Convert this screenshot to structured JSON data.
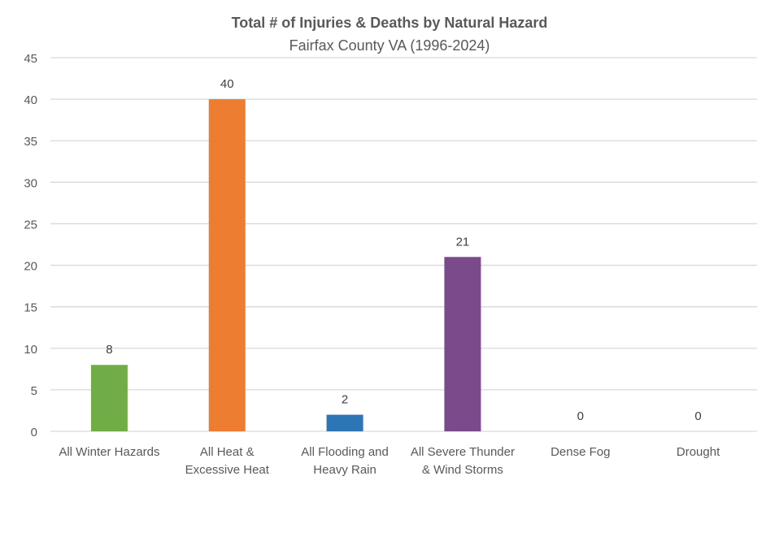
{
  "chart_data": {
    "type": "bar",
    "title": "Total # of Injuries & Deaths by Natural Hazard",
    "subtitle": "Fairfax County VA (1996-2024)",
    "xlabel": "",
    "ylabel": "",
    "ylim": [
      0,
      45
    ],
    "yticks": [
      0,
      5,
      10,
      15,
      20,
      25,
      30,
      35,
      40,
      45
    ],
    "grid": true,
    "legend": "none",
    "categories": [
      [
        "All  Winter Hazards"
      ],
      [
        "All Heat &",
        "Excessive Heat"
      ],
      [
        "All Flooding and",
        "Heavy Rain"
      ],
      [
        "All Severe Thunder",
        "& Wind Storms"
      ],
      [
        "Dense Fog"
      ],
      [
        "Drought"
      ]
    ],
    "values": [
      8,
      40,
      2,
      21,
      0,
      0
    ],
    "colors": [
      "#70ad47",
      "#ed7d31",
      "#2e75b6",
      "#7b4a8a",
      "#a5a5a5",
      "#a5a5a5"
    ]
  }
}
